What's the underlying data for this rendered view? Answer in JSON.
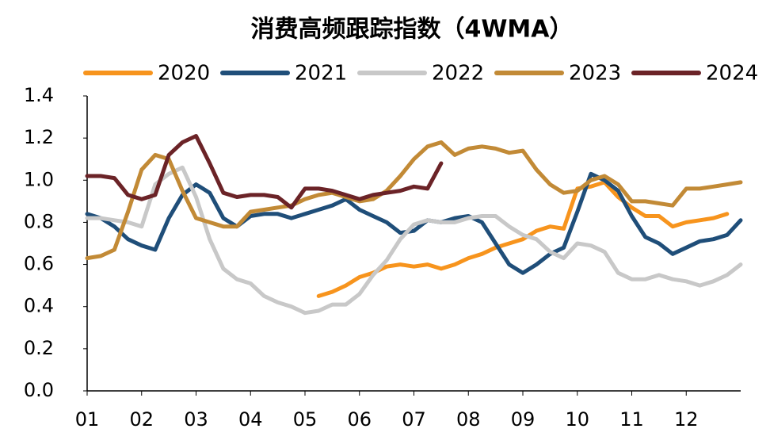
{
  "chart_data": {
    "type": "line",
    "title": "消费高频跟踪指数（4WMA）",
    "x": [
      1,
      1.25,
      1.5,
      1.75,
      2,
      2.25,
      2.5,
      2.75,
      3,
      3.25,
      3.5,
      3.75,
      4,
      4.25,
      4.5,
      4.75,
      5,
      5.25,
      5.5,
      5.75,
      6,
      6.25,
      6.5,
      6.75,
      7,
      7.25,
      7.5,
      7.75,
      8,
      8.25,
      8.5,
      8.75,
      9,
      9.25,
      9.5,
      9.75,
      10,
      10.25,
      10.5,
      10.75,
      11,
      11.25,
      11.5,
      11.75,
      12,
      12.25,
      12.5,
      12.75,
      13
    ],
    "series": [
      {
        "name": "2020",
        "color": "#f7941d",
        "values": [
          null,
          null,
          null,
          null,
          null,
          null,
          null,
          null,
          null,
          null,
          null,
          null,
          null,
          null,
          null,
          null,
          null,
          0.45,
          0.47,
          0.5,
          0.54,
          0.56,
          0.59,
          0.6,
          0.59,
          0.6,
          0.58,
          0.6,
          0.63,
          0.65,
          0.68,
          0.7,
          0.72,
          0.76,
          0.78,
          0.77,
          0.96,
          0.97,
          0.99,
          0.92,
          0.87,
          0.83,
          0.83,
          0.78,
          0.8,
          0.81,
          0.82,
          0.84,
          null
        ]
      },
      {
        "name": "2021",
        "color": "#1f4e79",
        "values": [
          0.84,
          0.82,
          0.78,
          0.72,
          0.69,
          0.67,
          0.82,
          0.93,
          0.98,
          0.94,
          0.82,
          0.78,
          0.83,
          0.84,
          0.84,
          0.82,
          0.84,
          0.86,
          0.88,
          0.91,
          0.86,
          0.83,
          0.8,
          0.75,
          0.76,
          0.81,
          0.8,
          0.82,
          0.83,
          0.8,
          0.7,
          0.6,
          0.56,
          0.6,
          0.65,
          0.68,
          0.85,
          1.03,
          1.0,
          0.95,
          0.83,
          0.73,
          0.7,
          0.65,
          0.68,
          0.71,
          0.72,
          0.74,
          0.81
        ]
      },
      {
        "name": "2022",
        "color": "#c8c8c8",
        "values": [
          0.82,
          0.82,
          0.81,
          0.8,
          0.78,
          0.98,
          1.03,
          1.06,
          0.92,
          0.72,
          0.58,
          0.53,
          0.51,
          0.45,
          0.42,
          0.4,
          0.37,
          0.38,
          0.41,
          0.41,
          0.46,
          0.55,
          0.62,
          0.72,
          0.79,
          0.81,
          0.8,
          0.8,
          0.82,
          0.83,
          0.83,
          0.78,
          0.74,
          0.72,
          0.66,
          0.63,
          0.7,
          0.69,
          0.66,
          0.56,
          0.53,
          0.53,
          0.55,
          0.53,
          0.52,
          0.5,
          0.52,
          0.55,
          0.6
        ]
      },
      {
        "name": "2023",
        "color": "#c28a36",
        "values": [
          0.63,
          0.64,
          0.67,
          0.85,
          1.05,
          1.12,
          1.1,
          0.95,
          0.82,
          0.8,
          0.78,
          0.78,
          0.85,
          0.86,
          0.87,
          0.88,
          0.91,
          0.93,
          0.94,
          0.92,
          0.9,
          0.91,
          0.95,
          1.02,
          1.1,
          1.16,
          1.18,
          1.12,
          1.15,
          1.16,
          1.15,
          1.13,
          1.14,
          1.05,
          0.98,
          0.94,
          0.95,
          1.0,
          1.02,
          0.98,
          0.9,
          0.9,
          0.89,
          0.88,
          0.96,
          0.96,
          0.97,
          0.98,
          0.99
        ]
      },
      {
        "name": "2024",
        "color": "#6b2327",
        "values": [
          1.02,
          1.02,
          1.01,
          0.93,
          0.91,
          0.93,
          1.12,
          1.18,
          1.21,
          1.08,
          0.94,
          0.92,
          0.93,
          0.93,
          0.92,
          0.87,
          0.96,
          0.96,
          0.95,
          0.93,
          0.91,
          0.93,
          0.94,
          0.95,
          0.97,
          0.96,
          1.08,
          null,
          null,
          null,
          null,
          null,
          null,
          null,
          null,
          null,
          null,
          null,
          null,
          null,
          null,
          null,
          null,
          null,
          null,
          null,
          null,
          null,
          null
        ]
      }
    ],
    "xlim": [
      1,
      13
    ],
    "xticks": [
      {
        "value": 1,
        "label": "01"
      },
      {
        "value": 2,
        "label": "02"
      },
      {
        "value": 3,
        "label": "03"
      },
      {
        "value": 4,
        "label": "04"
      },
      {
        "value": 5,
        "label": "05"
      },
      {
        "value": 6,
        "label": "06"
      },
      {
        "value": 7,
        "label": "07"
      },
      {
        "value": 8,
        "label": "08"
      },
      {
        "value": 9,
        "label": "09"
      },
      {
        "value": 10,
        "label": "10"
      },
      {
        "value": 11,
        "label": "11"
      },
      {
        "value": 12,
        "label": "12"
      }
    ],
    "ylim": [
      0,
      1.4
    ],
    "yticks": [
      {
        "value": 0,
        "label": "0.0"
      },
      0.2,
      0.4,
      0.6,
      0.8,
      {
        "value": 1,
        "label": "1.0"
      },
      1.2,
      1.4
    ],
    "grid": false,
    "legend": "top"
  }
}
